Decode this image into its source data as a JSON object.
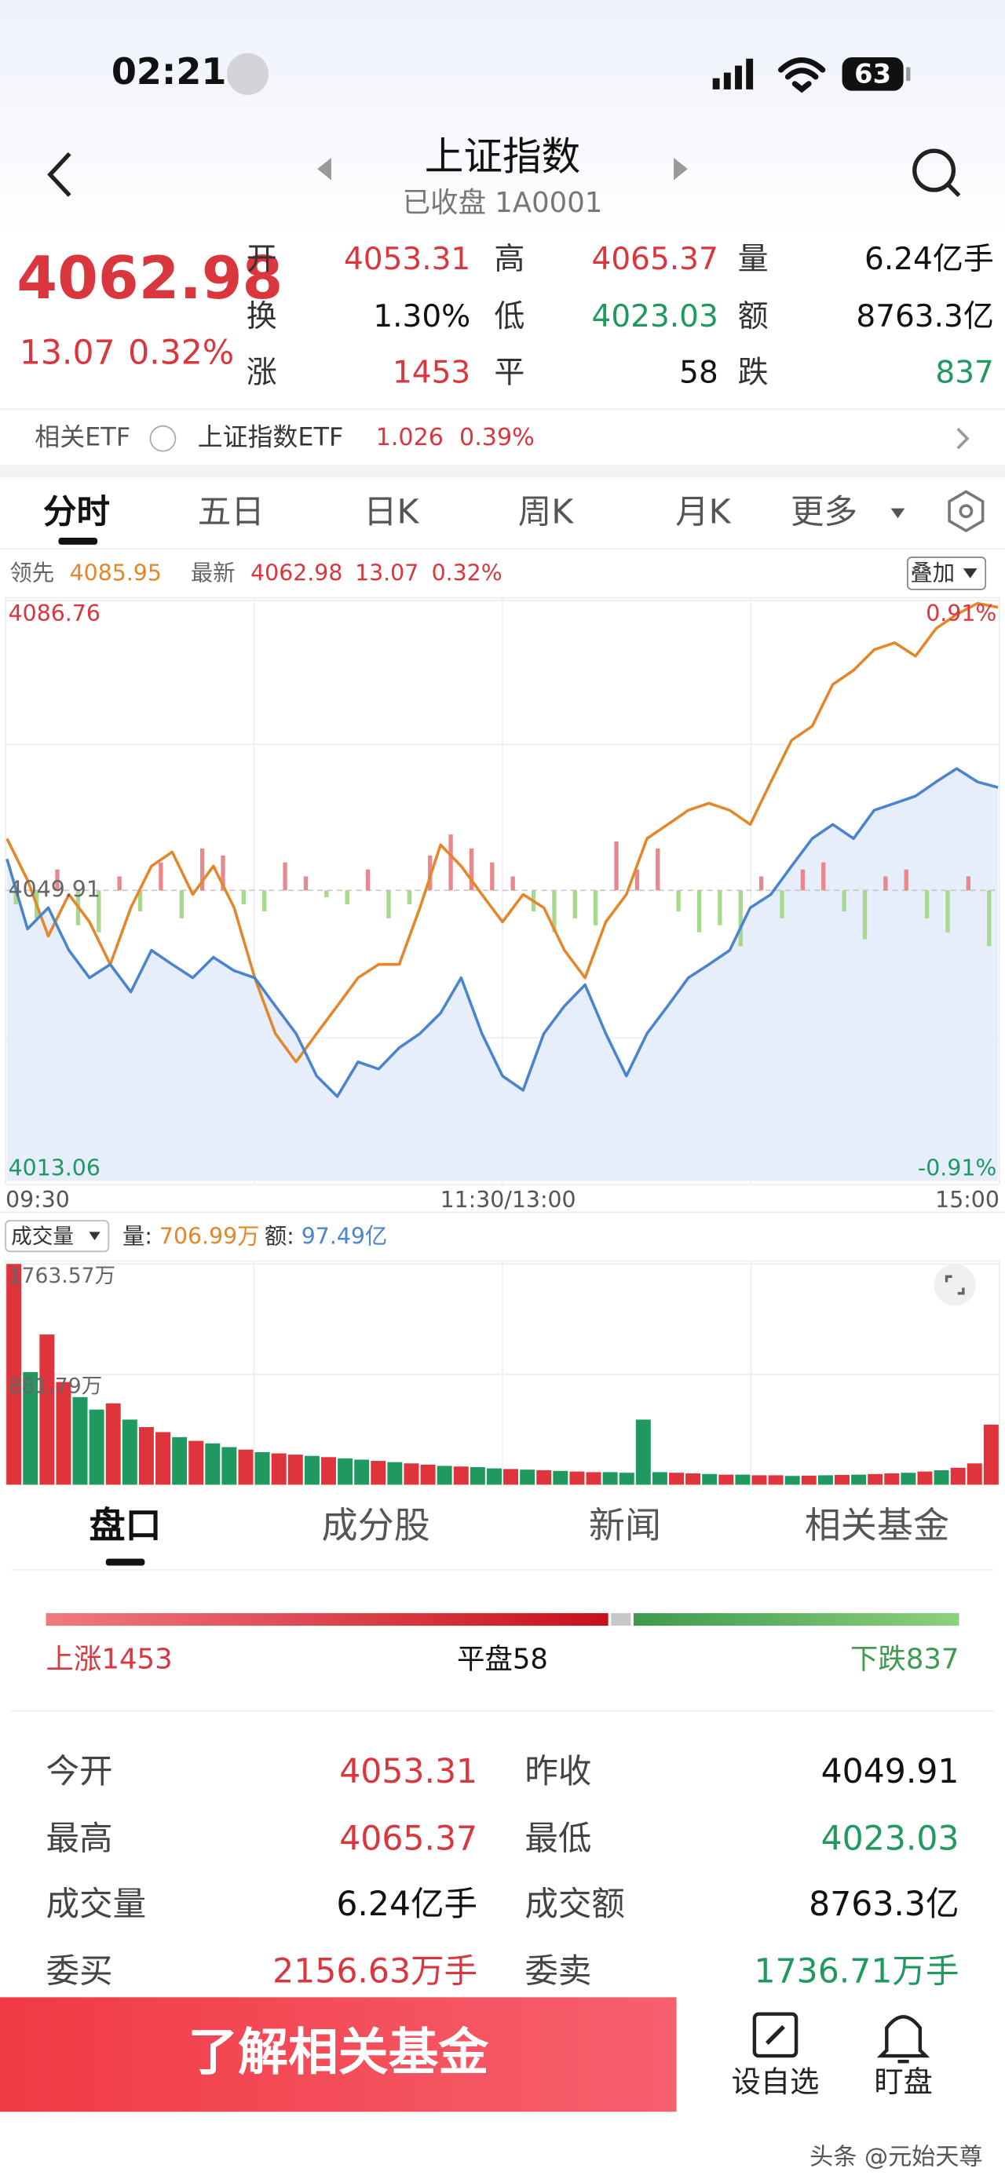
{
  "status": {
    "time": "02:21",
    "battery": "63"
  },
  "header": {
    "title": "上证指数",
    "subtitle": "已收盘 1A0001"
  },
  "quote": {
    "price": "4062.98",
    "change": "13.07",
    "percent": "0.32%",
    "stats": [
      {
        "label": "开",
        "value": "4053.31",
        "color": "#d9363e"
      },
      {
        "label": "高",
        "value": "4065.37",
        "color": "#d9363e"
      },
      {
        "label": "量",
        "value": "6.24亿手",
        "color": "#111111"
      },
      {
        "label": "换",
        "value": "1.30%",
        "color": "#111111"
      },
      {
        "label": "低",
        "value": "4023.03",
        "color": "#1f9960"
      },
      {
        "label": "额",
        "value": "8763.3亿",
        "color": "#111111"
      },
      {
        "label": "涨",
        "value": "1453",
        "color": "#d9363e"
      },
      {
        "label": "平",
        "value": "58",
        "color": "#111111"
      },
      {
        "label": "跌",
        "value": "837",
        "color": "#1f9960"
      }
    ]
  },
  "etf": {
    "label": "相关ETF",
    "name": "上证指数ETF",
    "price": "1.026",
    "percent": "0.39%"
  },
  "tabs": [
    "分时",
    "五日",
    "日K",
    "周K",
    "月K",
    "更多"
  ],
  "intraday": {
    "last_change": "13.07",
    "last_percent": "0.32%",
    "lead_value": "4085.95",
    "last_value": "4062.98",
    "overlay": "叠加",
    "ylim": [
      4013.06,
      4086.76
    ],
    "yticks": [
      4086.76,
      4049.91,
      4013.06
    ],
    "y2lim": [
      -0.91,
      0.91
    ],
    "y2ticks": [
      {
        "value": 0.91,
        "label": "0.91%"
      },
      {
        "value": -0.91,
        "label": "-0.91%"
      }
    ],
    "xlabels": [
      "09:30",
      "11:30/13:00",
      "15:00"
    ],
    "series": [
      {
        "name": "领先",
        "color": "#e4862a",
        "values": [
          4056.5,
          4051.2,
          4044.1,
          4049.4,
          4045.9,
          4040.5,
          4047.7,
          4053.0,
          4054.8,
          4049.4,
          4053.0,
          4047.7,
          4038.8,
          4031.7,
          4028.1,
          4031.7,
          4035.2,
          4038.8,
          4040.5,
          4040.5,
          4047.7,
          4055.7,
          4053.0,
          4049.4,
          4045.9,
          4049.4,
          4047.7,
          4042.3,
          4038.8,
          4045.9,
          4049.4,
          4056.5,
          4058.3,
          4060.1,
          4061.0,
          4060.1,
          4058.3,
          4063.7,
          4069.0,
          4070.8,
          4076.1,
          4077.9,
          4080.5,
          4081.4,
          4079.7,
          4083.2,
          4085.0,
          4086.4,
          4085.9
        ]
      },
      {
        "name": "最新",
        "color": "#4a84cf",
        "values": [
          4053.9,
          4045.0,
          4047.7,
          4042.3,
          4038.8,
          4040.5,
          4037.0,
          4042.3,
          4040.5,
          4038.8,
          4041.4,
          4039.7,
          4038.8,
          4035.2,
          4031.7,
          4026.3,
          4023.7,
          4028.1,
          4027.2,
          4029.9,
          4031.7,
          4034.3,
          4038.8,
          4031.7,
          4026.3,
          4024.5,
          4031.7,
          4035.2,
          4037.9,
          4031.7,
          4026.3,
          4031.7,
          4035.2,
          4038.8,
          4040.5,
          4042.3,
          4047.7,
          4049.4,
          4053.0,
          4056.5,
          4058.3,
          4056.5,
          4060.1,
          4061.0,
          4061.9,
          4063.7,
          4065.4,
          4063.7,
          4063.0
        ]
      }
    ],
    "strength": {
      "up_color": "#e8878c",
      "down_color": "#a6d98c",
      "values": [
        -10,
        -20,
        15,
        -25,
        -30,
        10,
        -15,
        20,
        -20,
        30,
        25,
        -10,
        -15,
        20,
        10,
        -5,
        -10,
        15,
        -20,
        -10,
        25,
        40,
        30,
        20,
        10,
        -15,
        -30,
        -20,
        -25,
        35,
        15,
        30,
        -15,
        -30,
        -25,
        -40,
        10,
        -20,
        15,
        20,
        -15,
        -35,
        10,
        15,
        -20,
        -30,
        10,
        -40
      ]
    }
  },
  "volume": {
    "label": "成交量",
    "amount_label": "量:",
    "amount": "706.99万",
    "turnover_label": "额:",
    "turnover": "97.49亿",
    "ylim": [
      0,
      1763.57
    ],
    "yticks": [
      {
        "value": 1763.57,
        "label": "1763.57万"
      },
      {
        "value": 881.79,
        "label": "881.79万"
      }
    ],
    "values": [
      1763.57,
      900,
      1200,
      820,
      700,
      600,
      650,
      520,
      460,
      420,
      380,
      350,
      330,
      300,
      280,
      260,
      250,
      240,
      230,
      220,
      210,
      200,
      190,
      180,
      170,
      160,
      150,
      145,
      140,
      130,
      125,
      120,
      115,
      110,
      105,
      100,
      100,
      95,
      520,
      100,
      95,
      90,
      85,
      80,
      80,
      75,
      75,
      70,
      72,
      75,
      78,
      80,
      85,
      90,
      95,
      105,
      115,
      135,
      170,
      480
    ],
    "colors": [
      "#e0343c",
      "#1f9960",
      "#e0343c",
      "#e0343c",
      "#1f9960",
      "#1f9960",
      "#e0343c",
      "#1f9960",
      "#e0343c",
      "#e0343c",
      "#1f9960",
      "#e0343c",
      "#1f9960",
      "#1f9960",
      "#e0343c",
      "#1f9960",
      "#e0343c",
      "#e0343c",
      "#1f9960",
      "#e0343c",
      "#1f9960",
      "#1f9960",
      "#e0343c",
      "#1f9960",
      "#e0343c",
      "#e0343c",
      "#1f9960",
      "#e0343c",
      "#1f9960",
      "#1f9960",
      "#e0343c",
      "#1f9960",
      "#e0343c",
      "#1f9960",
      "#e0343c",
      "#e0343c",
      "#1f9960",
      "#1f9960",
      "#1f9960",
      "#1f9960",
      "#e0343c",
      "#e0343c",
      "#1f9960",
      "#e0343c",
      "#1f9960",
      "#e0343c",
      "#e0343c",
      "#1f9960",
      "#e0343c",
      "#1f9960",
      "#e0343c",
      "#1f9960",
      "#e0343c",
      "#e0343c",
      "#1f9960",
      "#e0343c",
      "#1f9960",
      "#e0343c",
      "#e0343c",
      "#e0343c"
    ]
  },
  "detail_tabs": [
    "盘口",
    "成分股",
    "新闻",
    "相关基金"
  ],
  "breadth": {
    "up_label": "上涨",
    "up": 1453,
    "flat_label": "平盘",
    "flat": 58,
    "down_label": "下跌",
    "down": 837
  },
  "table": {
    "rows": [
      [
        "今开",
        "4053.31",
        "昨收",
        "4049.91"
      ],
      [
        "最高",
        "4065.37",
        "最低",
        "4023.03"
      ],
      [
        "成交量",
        "6.24亿手",
        "成交额",
        "8763.3亿"
      ],
      [
        "委买",
        "2156.63万手",
        "委卖",
        "1736.71万手"
      ]
    ]
  },
  "footer": {
    "button": "了解相关基金",
    "watch": "设自选",
    "monitor": "盯盘",
    "watermark": "头条 @元始天尊"
  }
}
